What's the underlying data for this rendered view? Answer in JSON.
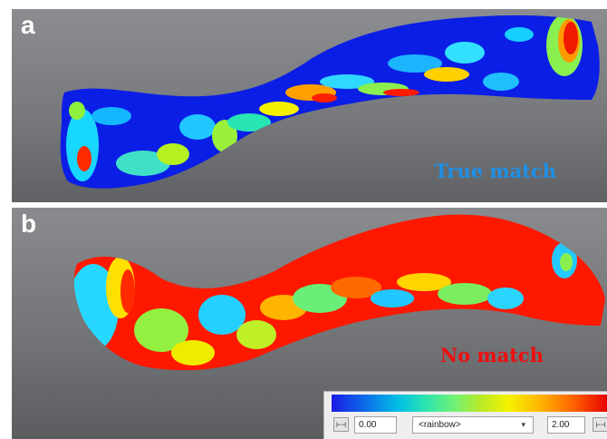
{
  "panels": {
    "a": {
      "letter": "a",
      "label": "True match",
      "label_color": "#1f8fe5"
    },
    "b": {
      "letter": "b",
      "label": "No match",
      "label_color": "#ef0e0e"
    }
  },
  "colorbar": {
    "min_value": "0.00",
    "max_value": "2.00",
    "colormap": "<rainbow>",
    "colors": [
      "#1a1ae6",
      "#00bfe6",
      "#6ff078",
      "#f5f200",
      "#ff5f00",
      "#e60000"
    ]
  },
  "icons": {
    "min_icon": "range-min-icon",
    "max_icon": "range-max-icon",
    "dropdown": "chevron-down-icon"
  }
}
